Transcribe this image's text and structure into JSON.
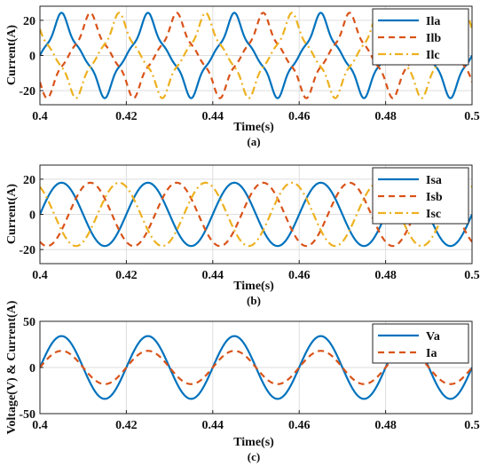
{
  "chart_data": [
    {
      "type": "line",
      "caption": "(a)",
      "xlabel": "Time(s)",
      "ylabel": "Current(A)",
      "xlim": [
        0.4,
        0.5
      ],
      "ylim": [
        -28,
        28
      ],
      "xticks": [
        0.4,
        0.42,
        0.44,
        0.46,
        0.48,
        0.5
      ],
      "xtick_labels": [
        "0.4",
        "0.42",
        "0.44",
        "0.46",
        "0.48",
        "0.5"
      ],
      "yticks": [
        -20,
        0,
        20
      ],
      "ytick_labels": [
        "-20",
        "0",
        "20"
      ],
      "grid": true,
      "legend_position": "top-right",
      "frequency_hz": 50,
      "series": [
        {
          "name": "Ila",
          "amplitude": 18,
          "phase_deg": 0,
          "waveform": "nonlinear",
          "color": "#0072BD",
          "dash": "solid"
        },
        {
          "name": "Ilb",
          "amplitude": 18,
          "phase_deg": -120,
          "waveform": "nonlinear",
          "color": "#D95319",
          "dash": "dashed"
        },
        {
          "name": "Ilc",
          "amplitude": 18,
          "phase_deg": 120,
          "waveform": "nonlinear",
          "color": "#EDB120",
          "dash": "dashdot"
        }
      ]
    },
    {
      "type": "line",
      "caption": "(b)",
      "xlabel": "Time(s)",
      "ylabel": "Current(A)",
      "xlim": [
        0.4,
        0.5
      ],
      "ylim": [
        -28,
        28
      ],
      "xticks": [
        0.4,
        0.42,
        0.44,
        0.46,
        0.48,
        0.5
      ],
      "xtick_labels": [
        "0.4",
        "0.42",
        "0.44",
        "0.46",
        "0.48",
        "0.5"
      ],
      "yticks": [
        -20,
        0,
        20
      ],
      "ytick_labels": [
        "-20",
        "0",
        "20"
      ],
      "grid": true,
      "legend_position": "top-right",
      "frequency_hz": 50,
      "series": [
        {
          "name": "Isa",
          "amplitude": 18,
          "phase_deg": 0,
          "waveform": "sine",
          "color": "#0072BD",
          "dash": "solid"
        },
        {
          "name": "Isb",
          "amplitude": 18,
          "phase_deg": -120,
          "waveform": "sine",
          "color": "#D95319",
          "dash": "dashed"
        },
        {
          "name": "Isc",
          "amplitude": 18,
          "phase_deg": 120,
          "waveform": "sine",
          "color": "#EDB120",
          "dash": "dashdot"
        }
      ]
    },
    {
      "type": "line",
      "caption": "(c)",
      "xlabel": "Time(s)",
      "ylabel": "Voltage(V) & Current(A)",
      "xlim": [
        0.4,
        0.5
      ],
      "ylim": [
        -50,
        50
      ],
      "xticks": [
        0.4,
        0.42,
        0.44,
        0.46,
        0.48,
        0.5
      ],
      "xtick_labels": [
        "0.4",
        "0.42",
        "0.44",
        "0.46",
        "0.48",
        "0.5"
      ],
      "yticks": [
        -50,
        0,
        50
      ],
      "ytick_labels": [
        "-50",
        "0",
        "50"
      ],
      "grid": true,
      "legend_position": "top-right",
      "frequency_hz": 50,
      "series": [
        {
          "name": "Va",
          "amplitude": 34,
          "phase_deg": 0,
          "waveform": "sine",
          "color": "#0072BD",
          "dash": "solid"
        },
        {
          "name": "Ia",
          "amplitude": 18,
          "phase_deg": 0,
          "waveform": "sine",
          "color": "#D95319",
          "dash": "dashed"
        }
      ]
    }
  ]
}
